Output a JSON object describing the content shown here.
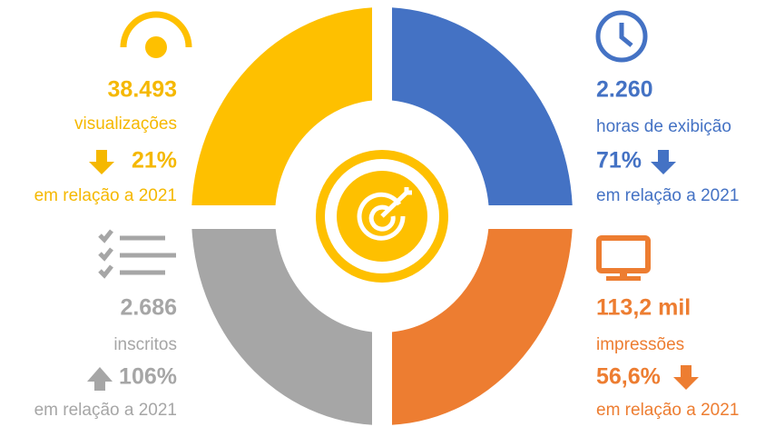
{
  "quadrants": [
    {
      "value": "38.493",
      "label": "visualizações",
      "change": "21%",
      "comparison": "em relação a 2021"
    },
    {
      "value": "2.260",
      "label": "horas de exibição",
      "change": "71%",
      "comparison": "em relação a 2021"
    },
    {
      "value": "2.686",
      "label": "inscritos",
      "change": "106%",
      "comparison": "em relação a 2021"
    },
    {
      "value": "113,2 mil",
      "label": "impressões",
      "change": "56,6%",
      "comparison": "em relação a 2021"
    }
  ]
}
